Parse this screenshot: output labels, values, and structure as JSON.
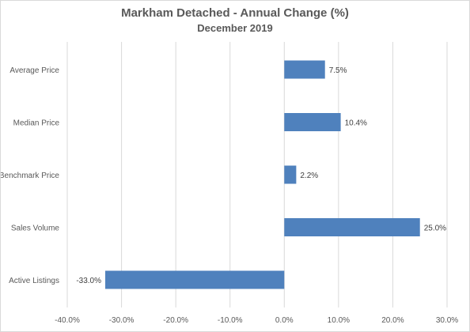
{
  "chart_data": {
    "type": "bar",
    "orientation": "horizontal",
    "title": "Markham Detached - Annual Change (%)",
    "subtitle": "December 2019",
    "categories": [
      "Average Price",
      "Median Price",
      "Benchmark Price",
      "Sales Volume",
      "Active Listings"
    ],
    "values": [
      7.5,
      10.4,
      2.2,
      25.0,
      -33.0
    ],
    "data_labels": [
      "7.5%",
      "10.4%",
      "2.2%",
      "25.0%",
      "-33.0%"
    ],
    "xlim": [
      -40,
      30
    ],
    "x_ticks": [
      -40,
      -30,
      -20,
      -10,
      0,
      10,
      20,
      30
    ],
    "x_tick_labels": [
      "-40.0%",
      "-30.0%",
      "-20.0%",
      "-10.0%",
      "0.0%",
      "10.0%",
      "20.0%",
      "30.0%"
    ],
    "xlabel": "",
    "ylabel": "",
    "grid": true,
    "legend": "none",
    "bar_color": "#4f81bd",
    "grid_color": "#d9d9d9"
  }
}
